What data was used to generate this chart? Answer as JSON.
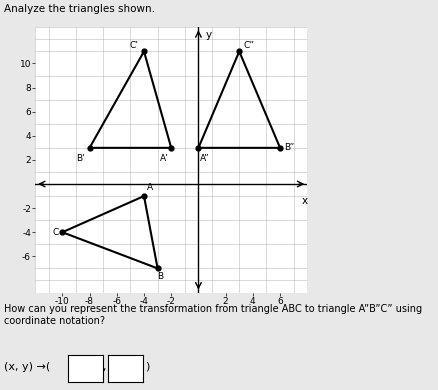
{
  "title": "Analyze the triangles shown.",
  "question": "How can you represent the transformation from triangle ABC to triangle A”B”C” using coordinate notation?",
  "triangle_ABC": {
    "A": [
      -4,
      -1
    ],
    "B": [
      -3,
      -7
    ],
    "C": [
      -10,
      -4
    ],
    "label_A": "A",
    "label_B": "B",
    "label_C": "C"
  },
  "triangle_ApBpCp": {
    "A": [
      -2,
      3
    ],
    "B": [
      -8,
      3
    ],
    "C": [
      -4,
      11
    ],
    "label_A": "A’",
    "label_B": "B’",
    "label_C": "C’"
  },
  "triangle_AppBppCpp": {
    "A": [
      0,
      3
    ],
    "B": [
      6,
      3
    ],
    "C": [
      3,
      11
    ],
    "label_A": "A”",
    "label_B": "B”",
    "label_C": "C”"
  },
  "xlim": [
    -12,
    8
  ],
  "ylim": [
    -9,
    13
  ],
  "xticks": [
    -10,
    -8,
    -6,
    -4,
    -2,
    2,
    4,
    6
  ],
  "yticks": [
    -6,
    -4,
    -2,
    2,
    4,
    6,
    8,
    10
  ],
  "grid_minor_step": 1,
  "grid_color": "#bbbbbb",
  "bg_color": "#e8e8e8",
  "plot_bg": "white",
  "figsize": [
    4.39,
    3.9
  ],
  "dpi": 100
}
